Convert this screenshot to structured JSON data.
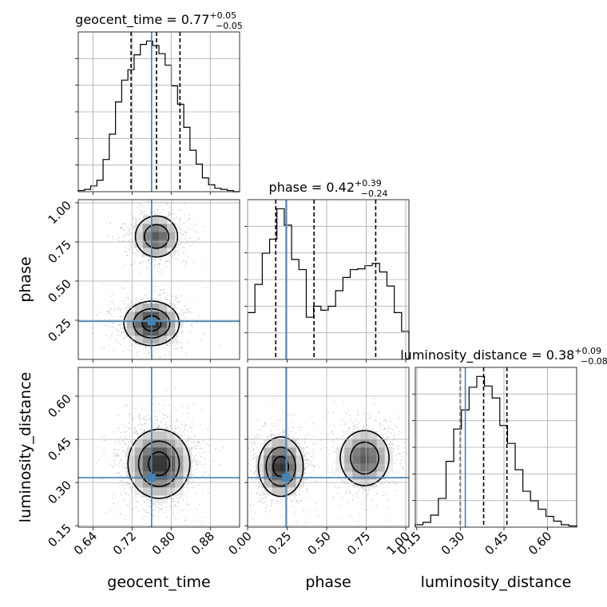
{
  "chart_data": {
    "type": "corner",
    "grid": true,
    "truth_color": "#4682b4",
    "line_color": "#000000",
    "parameters": [
      {
        "name": "geocent_time",
        "title": {
          "prefix": "geocent_time = ",
          "median": "0.77",
          "upper": "+0.05",
          "lower": "−0.05"
        },
        "range": [
          0.61,
          0.94
        ],
        "ticks": [
          0.64,
          0.72,
          0.8,
          0.88
        ],
        "tick_labels": [
          "0.64",
          "0.72",
          "0.80",
          "0.88"
        ],
        "truth": 0.76,
        "quantiles": [
          0.718,
          0.77,
          0.818
        ],
        "hist_edges": [
          0.61,
          0.94
        ],
        "hist_counts": [
          1,
          2,
          5,
          10,
          28,
          50,
          78,
          97,
          106,
          119,
          128,
          131,
          127,
          120,
          110,
          92,
          76,
          56,
          36,
          24,
          12,
          6,
          3,
          2,
          1,
          0
        ]
      },
      {
        "name": "phase",
        "title": {
          "prefix": "phase = ",
          "median": "0.42",
          "upper": "+0.39",
          "lower": "−0.24"
        },
        "range": [
          0.0,
          1.02
        ],
        "ticks": [
          0.0,
          0.25,
          0.5,
          0.75,
          1.0
        ],
        "tick_labels": [
          "0.00",
          "0.25",
          "0.50",
          "0.75",
          "1.00"
        ],
        "truth": 0.243,
        "quantiles": [
          0.178,
          0.42,
          0.81
        ],
        "hist_edges": [
          0.0,
          1.02
        ],
        "hist_counts": [
          60,
          96,
          136,
          154,
          193,
          172,
          128,
          115,
          54,
          68,
          63,
          68,
          88,
          105,
          115,
          116,
          120,
          123,
          112,
          94,
          60,
          36
        ]
      },
      {
        "name": "luminosity_distance",
        "title": {
          "prefix": "luminosity_distance = ",
          "median": "0.38",
          "upper": "+0.09",
          "lower": "−0.08"
        },
        "range": [
          0.145,
          0.7
        ],
        "ticks": [
          0.15,
          0.3,
          0.45,
          0.6
        ],
        "tick_labels": [
          "0.15",
          "0.30",
          "0.45",
          "0.60"
        ],
        "truth": 0.317,
        "quantiles": [
          0.3,
          0.38,
          0.46
        ],
        "hist_edges": [
          0.145,
          0.7
        ],
        "hist_counts": [
          2,
          4,
          10,
          24,
          55,
          82,
          98,
          117,
          126,
          118,
          108,
          85,
          70,
          48,
          30,
          22,
          15,
          9,
          5,
          2,
          1
        ]
      }
    ],
    "pairs": [
      {
        "x": "geocent_time",
        "y": "phase",
        "ticks_y": [
          0.25,
          0.5,
          0.75,
          1.0
        ],
        "tick_labels_y": [
          "0.25",
          "0.50",
          "0.75",
          "1.00"
        ],
        "modes": [
          {
            "cx": 0.77,
            "cy": 0.785,
            "sx": 0.028,
            "sy": 0.085,
            "w": 0.45
          },
          {
            "cx": 0.76,
            "cy": 0.23,
            "sx": 0.034,
            "sy": 0.085,
            "w": 0.55
          }
        ],
        "contour_levels": [
          0.25,
          0.55,
          0.85
        ]
      },
      {
        "x": "geocent_time",
        "y": "luminosity_distance",
        "ticks_y": [
          0.15,
          0.3,
          0.45,
          0.6
        ],
        "tick_labels_y": [
          "0.15",
          "0.30",
          "0.45",
          "0.60"
        ],
        "modes": [
          {
            "cx": 0.775,
            "cy": 0.365,
            "sx": 0.038,
            "sy": 0.072,
            "w": 1.0
          }
        ],
        "contour_levels": [
          0.25,
          0.55,
          0.85
        ]
      },
      {
        "x": "phase",
        "y": "luminosity_distance",
        "ticks_y": [
          0.15,
          0.3,
          0.45,
          0.6
        ],
        "tick_labels_y": [
          "0.15",
          "0.30",
          "0.45",
          "0.60"
        ],
        "modes": [
          {
            "cx": 0.21,
            "cy": 0.355,
            "sx": 0.085,
            "sy": 0.062,
            "w": 0.55
          },
          {
            "cx": 0.74,
            "cy": 0.385,
            "sx": 0.1,
            "sy": 0.062,
            "w": 0.45
          }
        ],
        "contour_levels": [
          0.25,
          0.55,
          0.85
        ]
      }
    ]
  }
}
